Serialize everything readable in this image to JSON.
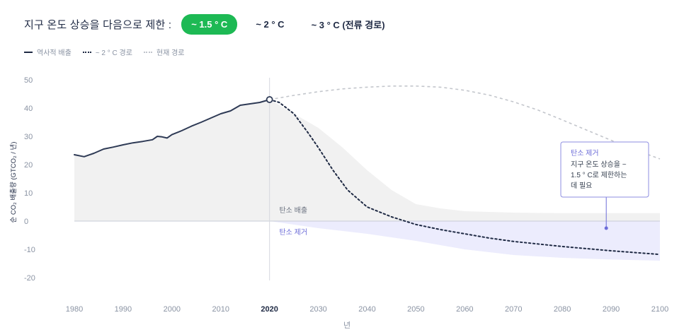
{
  "header": {
    "title": "지구 온도 상승을 다음으로 제한 :",
    "options": [
      {
        "label": "~ 1.5 ° C",
        "active": true
      },
      {
        "label": "~ 2 ° C",
        "active": false
      },
      {
        "label": "~ 3 ° C (전류 경로)",
        "active": false
      }
    ]
  },
  "legend": [
    {
      "label": "역사적 배출",
      "style": "solid"
    },
    {
      "label": "~ 2 ° C 경로",
      "style": "dotted"
    },
    {
      "label": "현재 경로",
      "style": "gray-dotted"
    }
  ],
  "colors": {
    "historic": "#2e3a55",
    "pathway": "#1f2a44",
    "current": "#c3c6cc",
    "emission_band": "#f1f1f1",
    "removal_band": "#ececfd",
    "removal_text": "#6c6cd8",
    "accent": "#1db954"
  },
  "chart_data": {
    "type": "line",
    "xlabel": "년",
    "ylabel": "순 CO₂ 배출량 (GTCO₂ / 년)",
    "xlim": [
      1980,
      2100
    ],
    "ylim": [
      -20,
      50
    ],
    "x_ticks": [
      "1980",
      "1990",
      "2000",
      "2010",
      "2020",
      "2030",
      "2040",
      "2050",
      "2060",
      "2070",
      "2080",
      "2090",
      "2100"
    ],
    "y_ticks": [
      "50",
      "40",
      "30",
      "20",
      "10",
      "0",
      "-10",
      "-20"
    ],
    "highlight_x": "2020",
    "series": [
      {
        "name": "역사적 배출",
        "style": "solid",
        "x": [
          1980,
          1982,
          1984,
          1986,
          1988,
          1990,
          1992,
          1994,
          1996,
          1997,
          1998,
          1999,
          2000,
          2002,
          2004,
          2006,
          2008,
          2010,
          2012,
          2014,
          2016,
          2018,
          2020
        ],
        "y": [
          23.5,
          22.8,
          24,
          25.5,
          26.2,
          27,
          27.7,
          28.2,
          28.8,
          30,
          29.8,
          29.4,
          30.6,
          32,
          33.6,
          35,
          36.5,
          38,
          39,
          41,
          41.5,
          42,
          43
        ]
      },
      {
        "name": "~ 2 ° C 경로",
        "style": "dotted",
        "x": [
          2020,
          2022,
          2025,
          2028,
          2030,
          2033,
          2036,
          2040,
          2045,
          2050,
          2055,
          2060,
          2065,
          2070,
          2080,
          2090,
          2100
        ],
        "y": [
          43,
          42,
          38,
          31,
          26,
          18,
          11,
          5,
          1.5,
          -1.2,
          -3,
          -4.5,
          -6,
          -7.2,
          -9,
          -10.5,
          -11.8
        ]
      },
      {
        "name": "현재 경로",
        "style": "gray-dotted",
        "x": [
          2020,
          2025,
          2030,
          2035,
          2040,
          2045,
          2050,
          2055,
          2060,
          2065,
          2070,
          2075,
          2080,
          2085,
          2090,
          2095,
          2100
        ],
        "y": [
          43,
          44.5,
          45.8,
          46.8,
          47.4,
          47.8,
          47.8,
          47.4,
          46.3,
          44.6,
          42.2,
          39.3,
          35.8,
          32.2,
          28.6,
          25.2,
          22
        ]
      }
    ],
    "emission_band": {
      "x": [
        2020,
        2025,
        2030,
        2035,
        2040,
        2045,
        2050,
        2055,
        2060,
        2070,
        2080,
        2090,
        2100
      ],
      "y": [
        43,
        38,
        33,
        26,
        18,
        11,
        6,
        4.5,
        3.5,
        3,
        2.8,
        2.8,
        2.8
      ]
    },
    "removal_band": {
      "x": [
        2020,
        2030,
        2040,
        2050,
        2060,
        2070,
        2080,
        2090,
        2100
      ],
      "y": [
        0,
        -2.5,
        -4.5,
        -7,
        -10,
        -12,
        -13,
        -13.6,
        -14
      ]
    },
    "region_labels": {
      "emission": "탄소 배출",
      "removal": "탄소 제거"
    },
    "annotation": {
      "title": "탄소 제거",
      "body_lines": [
        "지구 온도 상승을 ~",
        "1.5 ° C로 제한하는",
        "데 필요"
      ],
      "point": {
        "x": 2089,
        "y": -2.5
      }
    },
    "marker": {
      "x": 2020,
      "y": 43
    }
  }
}
